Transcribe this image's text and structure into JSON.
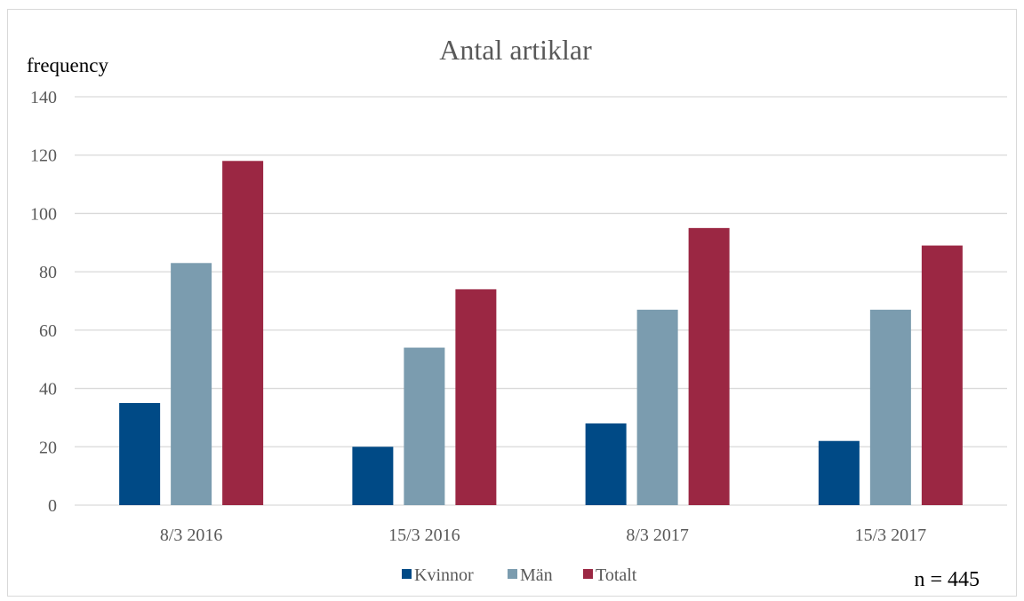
{
  "chart_data": {
    "type": "bar",
    "title": "Antal artiklar",
    "ylabel": "frequency",
    "xlabel": "",
    "categories": [
      "8/3 2016",
      "15/3 2016",
      "8/3 2017",
      "15/3 2017"
    ],
    "series": [
      {
        "name": "Kvinnor",
        "values": [
          35,
          20,
          28,
          22
        ],
        "color": "#004a86"
      },
      {
        "name": "Män",
        "values": [
          83,
          54,
          67,
          67
        ],
        "color": "#7b9caf"
      },
      {
        "name": "Totalt",
        "values": [
          118,
          74,
          95,
          89
        ],
        "color": "#9b2743"
      }
    ],
    "ylim": [
      0,
      140
    ],
    "yticks": [
      0,
      20,
      40,
      60,
      80,
      100,
      120,
      140
    ],
    "grid": true,
    "legend_position": "bottom",
    "annotation": "n = 445"
  }
}
